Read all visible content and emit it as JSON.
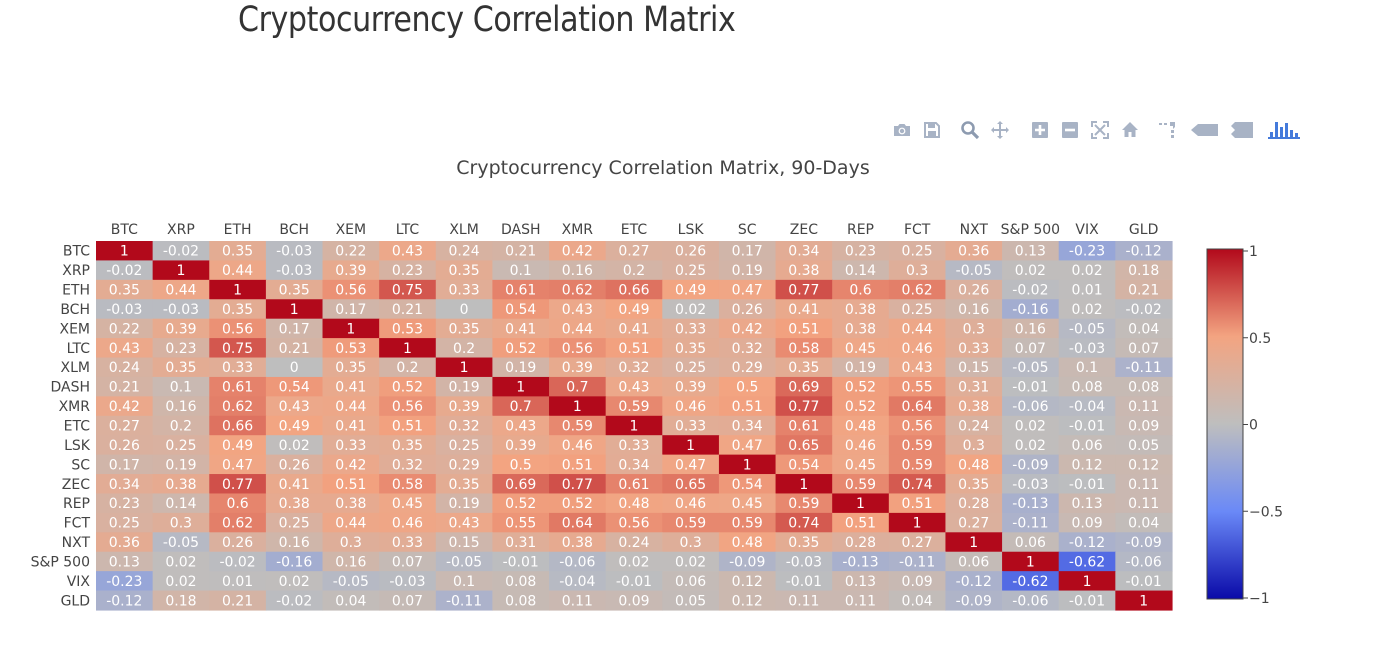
{
  "page": {
    "title": "Cryptocurrency Correlation Matrix"
  },
  "modebar": {
    "icons": [
      "camera-icon",
      "save-icon",
      "zoom-icon",
      "pan-icon",
      "zoom-in-icon",
      "zoom-out-icon",
      "autoscale-icon",
      "home-icon",
      "spike-lines-icon",
      "hover-closest-icon",
      "hover-compare-icon",
      "plotly-logo-icon"
    ]
  },
  "colors": {
    "scale": [
      "#0a0aa8",
      "#6a89f7",
      "#bebebe",
      "#f3a481",
      "#b2091b"
    ],
    "text": "#444444",
    "title": "#333333",
    "icon": "#a8b3c5",
    "logo": "#447adb"
  },
  "chart_data": {
    "type": "heatmap",
    "title": "Cryptocurrency Correlation Matrix, 90-Days",
    "labels": [
      "BTC",
      "XRP",
      "ETH",
      "BCH",
      "XEM",
      "LTC",
      "XLM",
      "DASH",
      "XMR",
      "ETC",
      "LSK",
      "SC",
      "ZEC",
      "REP",
      "FCT",
      "NXT",
      "S&P 500",
      "VIX",
      "GLD"
    ],
    "z": [
      [
        1,
        -0.02,
        0.35,
        -0.03,
        0.22,
        0.43,
        0.24,
        0.21,
        0.42,
        0.27,
        0.26,
        0.17,
        0.34,
        0.23,
        0.25,
        0.36,
        0.13,
        -0.23,
        -0.12
      ],
      [
        -0.02,
        1,
        0.44,
        -0.03,
        0.39,
        0.23,
        0.35,
        0.1,
        0.16,
        0.2,
        0.25,
        0.19,
        0.38,
        0.14,
        0.3,
        -0.05,
        0.02,
        0.02,
        0.18
      ],
      [
        0.35,
        0.44,
        1,
        0.35,
        0.56,
        0.75,
        0.33,
        0.61,
        0.62,
        0.66,
        0.49,
        0.47,
        0.77,
        0.6,
        0.62,
        0.26,
        -0.02,
        0.01,
        0.21
      ],
      [
        -0.03,
        -0.03,
        0.35,
        1,
        0.17,
        0.21,
        0,
        0.54,
        0.43,
        0.49,
        0.02,
        0.26,
        0.41,
        0.38,
        0.25,
        0.16,
        -0.16,
        0.02,
        -0.02
      ],
      [
        0.22,
        0.39,
        0.56,
        0.17,
        1,
        0.53,
        0.35,
        0.41,
        0.44,
        0.41,
        0.33,
        0.42,
        0.51,
        0.38,
        0.44,
        0.3,
        0.16,
        -0.05,
        0.04
      ],
      [
        0.43,
        0.23,
        0.75,
        0.21,
        0.53,
        1,
        0.2,
        0.52,
        0.56,
        0.51,
        0.35,
        0.32,
        0.58,
        0.45,
        0.46,
        0.33,
        0.07,
        -0.03,
        0.07
      ],
      [
        0.24,
        0.35,
        0.33,
        0,
        0.35,
        0.2,
        1,
        0.19,
        0.39,
        0.32,
        0.25,
        0.29,
        0.35,
        0.19,
        0.43,
        0.15,
        -0.05,
        0.1,
        -0.11
      ],
      [
        0.21,
        0.1,
        0.61,
        0.54,
        0.41,
        0.52,
        0.19,
        1,
        0.7,
        0.43,
        0.39,
        0.5,
        0.69,
        0.52,
        0.55,
        0.31,
        -0.01,
        0.08,
        0.08
      ],
      [
        0.42,
        0.16,
        0.62,
        0.43,
        0.44,
        0.56,
        0.39,
        0.7,
        1,
        0.59,
        0.46,
        0.51,
        0.77,
        0.52,
        0.64,
        0.38,
        -0.06,
        -0.04,
        0.11
      ],
      [
        0.27,
        0.2,
        0.66,
        0.49,
        0.41,
        0.51,
        0.32,
        0.43,
        0.59,
        1,
        0.33,
        0.34,
        0.61,
        0.48,
        0.56,
        0.24,
        0.02,
        -0.01,
        0.09
      ],
      [
        0.26,
        0.25,
        0.49,
        0.02,
        0.33,
        0.35,
        0.25,
        0.39,
        0.46,
        0.33,
        1,
        0.47,
        0.65,
        0.46,
        0.59,
        0.3,
        0.02,
        0.06,
        0.05
      ],
      [
        0.17,
        0.19,
        0.47,
        0.26,
        0.42,
        0.32,
        0.29,
        0.5,
        0.51,
        0.34,
        0.47,
        1,
        0.54,
        0.45,
        0.59,
        0.48,
        -0.09,
        0.12,
        0.12
      ],
      [
        0.34,
        0.38,
        0.77,
        0.41,
        0.51,
        0.58,
        0.35,
        0.69,
        0.77,
        0.61,
        0.65,
        0.54,
        1,
        0.59,
        0.74,
        0.35,
        -0.03,
        -0.01,
        0.11
      ],
      [
        0.23,
        0.14,
        0.6,
        0.38,
        0.38,
        0.45,
        0.19,
        0.52,
        0.52,
        0.48,
        0.46,
        0.45,
        0.59,
        1,
        0.51,
        0.28,
        -0.13,
        0.13,
        0.11
      ],
      [
        0.25,
        0.3,
        0.62,
        0.25,
        0.44,
        0.46,
        0.43,
        0.55,
        0.64,
        0.56,
        0.59,
        0.59,
        0.74,
        0.51,
        1,
        0.27,
        -0.11,
        0.09,
        0.04
      ],
      [
        0.36,
        -0.05,
        0.26,
        0.16,
        0.3,
        0.33,
        0.15,
        0.31,
        0.38,
        0.24,
        0.3,
        0.48,
        0.35,
        0.28,
        0.27,
        1,
        0.06,
        -0.12,
        -0.09
      ],
      [
        0.13,
        0.02,
        -0.02,
        -0.16,
        0.16,
        0.07,
        -0.05,
        -0.01,
        -0.06,
        0.02,
        0.02,
        -0.09,
        -0.03,
        -0.13,
        -0.11,
        0.06,
        1,
        -0.62,
        -0.06
      ],
      [
        -0.23,
        0.02,
        0.01,
        0.02,
        -0.05,
        -0.03,
        0.1,
        0.08,
        -0.04,
        -0.01,
        0.06,
        0.12,
        -0.01,
        0.13,
        0.09,
        -0.12,
        -0.62,
        1,
        -0.01
      ],
      [
        -0.12,
        0.18,
        0.21,
        -0.02,
        0.04,
        0.07,
        -0.11,
        0.08,
        0.11,
        0.09,
        0.05,
        0.12,
        0.11,
        0.11,
        0.04,
        -0.09,
        -0.06,
        -0.01,
        1
      ]
    ],
    "zrange": [
      -1,
      1
    ],
    "colorbar": {
      "ticks": [
        1,
        0.5,
        0,
        -0.5,
        -1
      ],
      "tick_labels": [
        "1",
        "0.5",
        "0",
        "−0.5",
        "−1"
      ]
    },
    "x_axis_side": "top",
    "legend": "colorbar-right"
  }
}
